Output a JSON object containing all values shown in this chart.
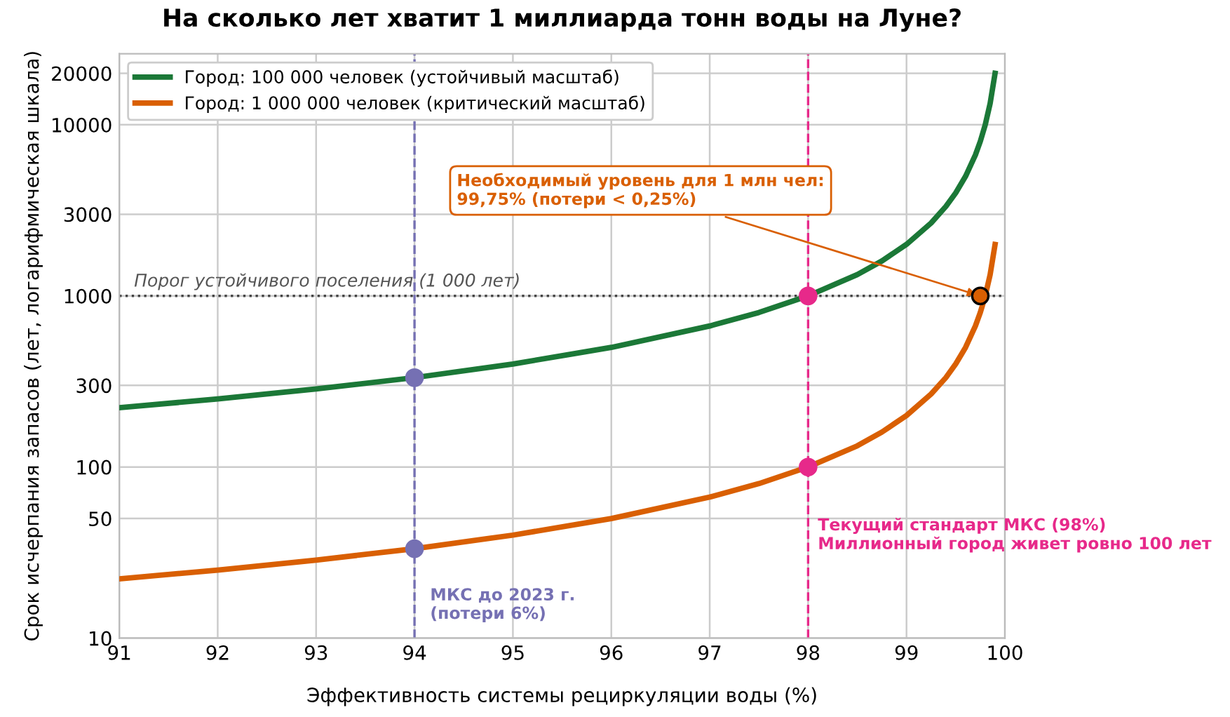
{
  "chart_data": {
    "type": "line",
    "title": "На сколько лет хватит 1 миллиарда тонн воды на Луне?",
    "xlabel": "Эффективность системы рециркуляции воды (%)",
    "ylabel": "Срок исчерпания запасов (лет, логарифмическая шкала)",
    "x": [
      91,
      92,
      93,
      94,
      95,
      96,
      97,
      97.5,
      98,
      98.5,
      98.75,
      99,
      99.25,
      99.4,
      99.5,
      99.6,
      99.7,
      99.75,
      99.8,
      99.85,
      99.9
    ],
    "series": [
      {
        "name": "Город: 100 000 человек (устойчивый масштаб)",
        "color": "#1b7837",
        "values": [
          222,
          250,
          286,
          333,
          400,
          500,
          667,
          800,
          1000,
          1333,
          1600,
          2000,
          2667,
          3333,
          4000,
          5000,
          6667,
          8000,
          10000,
          13333,
          20000
        ]
      },
      {
        "name": "Город: 1 000 000 человек (критический масштаб)",
        "color": "#d95f02",
        "values": [
          22.2,
          25,
          28.6,
          33.3,
          40,
          50,
          66.7,
          80,
          100,
          133,
          160,
          200,
          267,
          333,
          400,
          500,
          667,
          800,
          1000,
          1333,
          2000
        ]
      },
      {
        "type": "scatter",
        "marker": "circle",
        "color": "#7570b3",
        "x": [
          94,
          94
        ],
        "values": [
          333,
          33.3
        ]
      },
      {
        "type": "scatter",
        "marker": "circle",
        "color": "#e7298a",
        "x": [
          98,
          98
        ],
        "values": [
          1000,
          100
        ]
      },
      {
        "type": "scatter",
        "marker": "circle",
        "color": "#d95f02",
        "x": [
          99.75
        ],
        "values": [
          1000
        ]
      }
    ],
    "log": "y",
    "xlim": [
      91,
      100
    ],
    "xticks": [
      91,
      92,
      93,
      94,
      95,
      96,
      97,
      98,
      99,
      100
    ],
    "ylim": [
      10,
      26000
    ],
    "yticks": [
      10,
      50,
      100,
      300,
      1000,
      3000,
      10000,
      20000
    ],
    "ref_lines": [
      {
        "axis": "x",
        "value": 94,
        "color": "#7570b3",
        "line_style": "dashed"
      },
      {
        "axis": "x",
        "value": 98,
        "color": "#e7298a",
        "line_style": "dashed"
      },
      {
        "axis": "y",
        "value": 1000,
        "color": "#444444",
        "line_style": "dotted",
        "label": "Порог устойчивого поселения (1 000 лет)"
      }
    ],
    "annotations": [
      {
        "text": "Необходимый уровень для 1 млн чел:\n99,75% (потери < 0,25%)",
        "x": 99.75,
        "y": 1000
      },
      {
        "text": "Текущий стандарт МКС (98%)\nМиллионный город живет ровно 100 лет",
        "x": 98,
        "y": 40
      },
      {
        "text": "МКС до 2023 г.\n(потери 6%)",
        "x": 94,
        "y": 33.3
      }
    ],
    "grid": true,
    "legend": "top left",
    "marker": "none",
    "line_style": "solid"
  }
}
